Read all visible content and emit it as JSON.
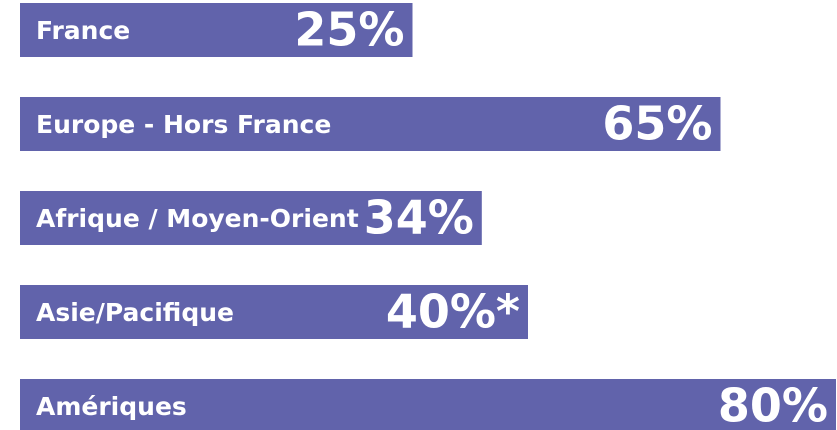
{
  "chart_data": {
    "type": "bar",
    "orientation": "horizontal",
    "categories": [
      "France",
      "Europe - Hors France",
      "Afrique / Moyen-Orient",
      "Asie/Pacifique",
      "Amériques"
    ],
    "values": [
      25,
      65,
      34,
      40,
      80
    ],
    "value_labels": [
      "25%",
      "65%",
      "34%",
      "40%*",
      "80%"
    ],
    "color": "#6163ab"
  }
}
